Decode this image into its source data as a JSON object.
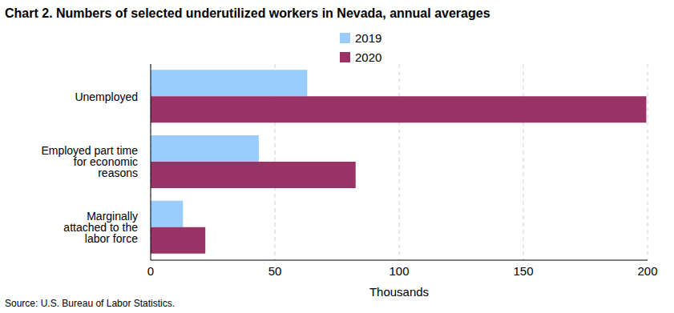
{
  "chart_data": {
    "type": "bar",
    "title": "Chart 2. Numbers of selected underutilized workers in Nevada, annual averages",
    "source": "Source: U.S. Bureau of Labor Statistics.",
    "x_label": "Thousands",
    "orientation": "horizontal",
    "categories": [
      "Unemployed",
      "Employed part time for economic reasons",
      "Marginally attached to the labor force"
    ],
    "series": [
      {
        "name": "2019",
        "color": "#99ccff",
        "values": [
          63,
          43.5,
          13
        ]
      },
      {
        "name": "2020",
        "color": "#993366",
        "values": [
          199.5,
          82.5,
          22
        ]
      }
    ],
    "xlim": [
      0,
      200
    ],
    "xticks": [
      0,
      50,
      100,
      150,
      200
    ],
    "grid": true,
    "legend": "top"
  }
}
